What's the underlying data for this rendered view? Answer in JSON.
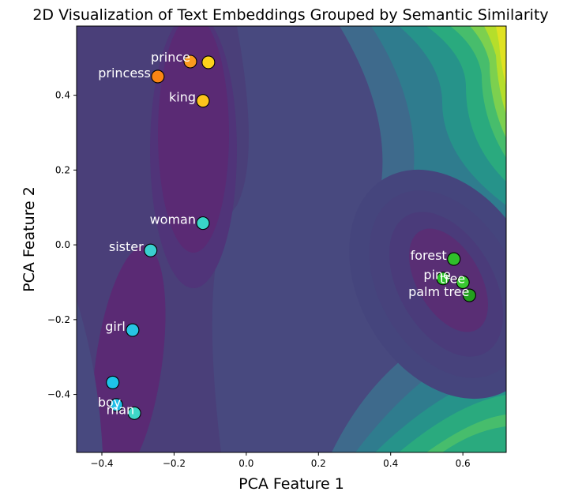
{
  "chart_data": {
    "type": "scatter",
    "title": "2D Visualization of Text Embeddings Grouped by Semantic Similarity",
    "xlabel": "PCA Feature 1",
    "ylabel": "PCA Feature 2",
    "xlim": [
      -0.47,
      0.72
    ],
    "ylim": [
      -0.555,
      0.585
    ],
    "xticks": [
      -0.4,
      -0.2,
      0.0,
      0.2,
      0.4,
      0.6
    ],
    "xtick_labels": [
      "−0.4",
      "−0.2",
      "0.0",
      "0.2",
      "0.4",
      "0.6"
    ],
    "yticks": [
      -0.4,
      -0.2,
      0.0,
      0.2,
      0.4
    ],
    "yticks_labels": [
      "−0.4",
      "−0.2",
      "0.0",
      "0.2",
      "0.4"
    ],
    "background": "filled contour (viridis colormap) of point density",
    "grid": false,
    "points": [
      {
        "word": "prince",
        "x": -0.155,
        "y": 0.49,
        "color": "#fb9a1e",
        "show_label": true
      },
      {
        "word": "",
        "x": -0.105,
        "y": 0.488,
        "color": "#fcd21c",
        "show_label": false
      },
      {
        "word": "princess",
        "x": -0.245,
        "y": 0.45,
        "color": "#fb8514",
        "show_label": true
      },
      {
        "word": "king",
        "x": -0.12,
        "y": 0.385,
        "color": "#fcc41c",
        "show_label": true
      },
      {
        "word": "woman",
        "x": -0.12,
        "y": 0.058,
        "color": "#39d6c8",
        "show_label": true
      },
      {
        "word": "sister",
        "x": -0.265,
        "y": -0.015,
        "color": "#3ad0d0",
        "show_label": true
      },
      {
        "word": "girl",
        "x": -0.315,
        "y": -0.228,
        "color": "#27c4e4",
        "show_label": true
      },
      {
        "word": "",
        "x": -0.37,
        "y": -0.368,
        "color": "#1ec4e9",
        "show_label": false
      },
      {
        "word": "boy",
        "x": -0.36,
        "y": -0.428,
        "color": "#1ebde6",
        "show_label": true
      },
      {
        "word": "man",
        "x": -0.31,
        "y": -0.45,
        "color": "#3fd7c8",
        "show_label": true
      },
      {
        "word": "forest",
        "x": 0.575,
        "y": -0.038,
        "color": "#2fbf2a",
        "show_label": true
      },
      {
        "word": "pine",
        "x": 0.545,
        "y": -0.09,
        "color": "#2bbf28",
        "show_label": true
      },
      {
        "word": "tree",
        "x": 0.6,
        "y": -0.1,
        "color": "#38c830",
        "show_label": true
      },
      {
        "word": "palm tree",
        "x": 0.618,
        "y": -0.135,
        "color": "#239f1e",
        "show_label": true
      }
    ]
  }
}
